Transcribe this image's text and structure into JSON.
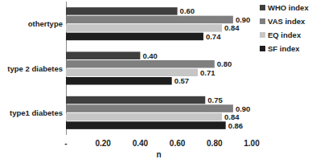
{
  "chart_data": {
    "type": "bar",
    "orientation": "horizontal",
    "x_label": "n",
    "categories": [
      "type1 diabetes",
      "type 2 diabetes",
      "othertype"
    ],
    "series": [
      {
        "name": "WHO index",
        "color": "#3f3f3f",
        "values": [
          0.75,
          0.4,
          0.6
        ],
        "value_labels": [
          "0.75",
          "0.40",
          "0.60"
        ]
      },
      {
        "name": "VAS index",
        "color": "#7f7f7f",
        "values": [
          0.9,
          0.8,
          0.9
        ],
        "value_labels": [
          "0.90",
          "0.80",
          "0.90"
        ]
      },
      {
        "name": "EQ index",
        "color": "#c6c6c6",
        "values": [
          0.84,
          0.71,
          0.84
        ],
        "value_labels": [
          "0.84",
          "0.71",
          "0.84"
        ]
      },
      {
        "name": "SF index",
        "color": "#1e1e1e",
        "values": [
          0.86,
          0.57,
          0.74
        ],
        "value_labels": [
          "0.86",
          "0.57",
          "0.74"
        ]
      }
    ],
    "xlim": [
      0,
      1
    ],
    "xticks": [
      {
        "value": 0,
        "label": "-"
      },
      {
        "value": 0.2,
        "label": "0.20"
      },
      {
        "value": 0.4,
        "label": "0.40"
      },
      {
        "value": 0.6,
        "label": "0.60"
      },
      {
        "value": 0.8,
        "label": "0.80"
      },
      {
        "value": 1,
        "label": "1.00"
      }
    ],
    "grid": false,
    "data_labels": true,
    "legend": "right"
  }
}
